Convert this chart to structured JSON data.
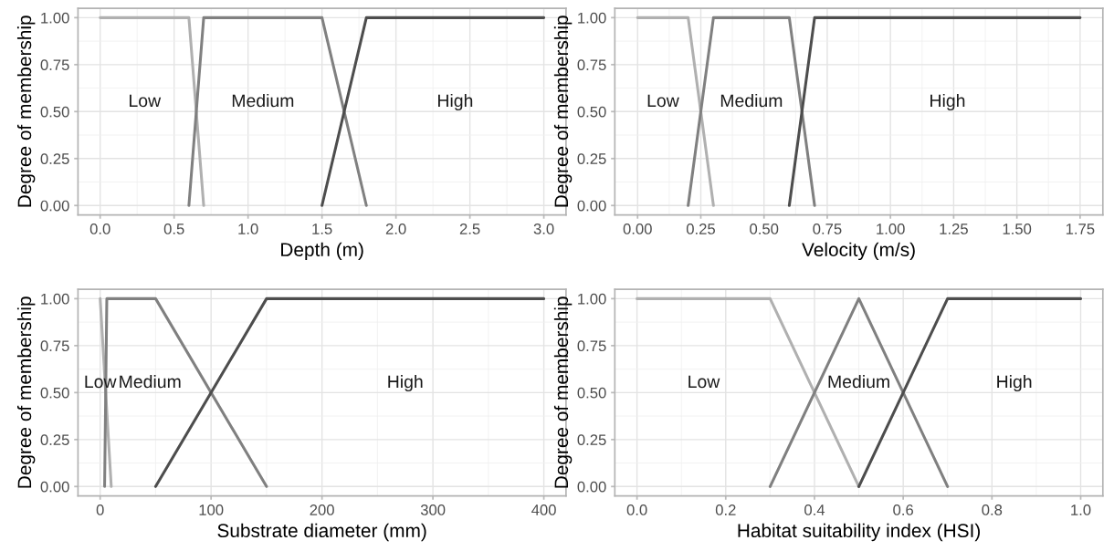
{
  "chart_data": [
    {
      "type": "line",
      "xlabel": "Depth (m)",
      "ylabel": "Degree of membership",
      "grid": true,
      "xlim": [
        -0.15,
        3.15
      ],
      "ylim": [
        -0.05,
        1.05
      ],
      "xticks": [
        {
          "value": 0,
          "label": "0.0"
        },
        {
          "value": 0.5,
          "label": "0.5"
        },
        {
          "value": 1,
          "label": "1.0"
        },
        {
          "value": 1.5,
          "label": "1.5"
        },
        {
          "value": 2,
          "label": "2.0"
        },
        {
          "value": 2.5,
          "label": "2.5"
        },
        {
          "value": 3,
          "label": "3.0"
        }
      ],
      "yticks": [
        {
          "value": 0,
          "label": "0.00"
        },
        {
          "value": 0.25,
          "label": "0.25"
        },
        {
          "value": 0.5,
          "label": "0.50"
        },
        {
          "value": 0.75,
          "label": "0.75"
        },
        {
          "value": 1,
          "label": "1.00"
        }
      ],
      "series": [
        {
          "color": "#b0b0b0",
          "x": [
            0,
            0.6,
            0.7
          ],
          "values": [
            1,
            1,
            0
          ]
        },
        {
          "color": "#808080",
          "x": [
            0.6,
            0.7,
            1.5,
            1.8
          ],
          "values": [
            0,
            1,
            1,
            0
          ]
        },
        {
          "color": "#4d4d4d",
          "x": [
            1.5,
            1.8,
            3
          ],
          "values": [
            0,
            1,
            1
          ]
        }
      ],
      "annotations": [
        "Low",
        "Medium",
        "High"
      ]
    },
    {
      "type": "line",
      "xlabel": "Velocity (m/s)",
      "ylabel": "Degree of membership",
      "grid": true,
      "xlim": [
        -0.09,
        1.84
      ],
      "ylim": [
        -0.05,
        1.05
      ],
      "xticks": [
        {
          "value": 0,
          "label": "0.00"
        },
        {
          "value": 0.25,
          "label": "0.25"
        },
        {
          "value": 0.5,
          "label": "0.50"
        },
        {
          "value": 0.75,
          "label": "0.75"
        },
        {
          "value": 1,
          "label": "1.00"
        },
        {
          "value": 1.25,
          "label": "1.25"
        },
        {
          "value": 1.5,
          "label": "1.50"
        },
        {
          "value": 1.75,
          "label": "1.75"
        }
      ],
      "yticks": [
        {
          "value": 0,
          "label": "0.00"
        },
        {
          "value": 0.25,
          "label": "0.25"
        },
        {
          "value": 0.5,
          "label": "0.50"
        },
        {
          "value": 0.75,
          "label": "0.75"
        },
        {
          "value": 1,
          "label": "1.00"
        }
      ],
      "series": [
        {
          "color": "#b0b0b0",
          "x": [
            0,
            0.2,
            0.3
          ],
          "values": [
            1,
            1,
            0
          ]
        },
        {
          "color": "#808080",
          "x": [
            0.2,
            0.3,
            0.6,
            0.7
          ],
          "values": [
            0,
            1,
            1,
            0
          ]
        },
        {
          "color": "#4d4d4d",
          "x": [
            0.6,
            0.7,
            1.75
          ],
          "values": [
            0,
            1,
            1
          ]
        }
      ],
      "annotations": [
        "Low",
        "Medium",
        "High"
      ]
    },
    {
      "type": "line",
      "xlabel": "Substrate diameter (mm)",
      "ylabel": "Degree of membership",
      "grid": true,
      "xlim": [
        -20,
        420
      ],
      "ylim": [
        -0.05,
        1.05
      ],
      "xticks": [
        0,
        100,
        200,
        300,
        400
      ],
      "yticks": [
        {
          "value": 0,
          "label": "0.00"
        },
        {
          "value": 0.25,
          "label": "0.25"
        },
        {
          "value": 0.5,
          "label": "0.50"
        },
        {
          "value": 0.75,
          "label": "0.75"
        },
        {
          "value": 1,
          "label": "1.00"
        }
      ],
      "series": [
        {
          "color": "#b0b0b0",
          "x": [
            0,
            10
          ],
          "values": [
            1,
            0
          ]
        },
        {
          "color": "#808080",
          "x": [
            4,
            6,
            50,
            150
          ],
          "values": [
            0,
            1,
            1,
            0
          ]
        },
        {
          "color": "#4d4d4d",
          "x": [
            50,
            150,
            400
          ],
          "values": [
            0,
            1,
            1
          ]
        }
      ],
      "annotations": [
        "Low",
        "Medium",
        "High"
      ]
    },
    {
      "type": "line",
      "xlabel": "Habitat suitability index (HSI)",
      "ylabel": "Degree of membership",
      "grid": true,
      "xlim": [
        -0.05,
        1.05
      ],
      "ylim": [
        -0.05,
        1.05
      ],
      "xticks": [
        {
          "value": 0,
          "label": "0.0"
        },
        {
          "value": 0.2,
          "label": "0.2"
        },
        {
          "value": 0.4,
          "label": "0.4"
        },
        {
          "value": 0.6,
          "label": "0.6"
        },
        {
          "value": 0.8,
          "label": "0.8"
        },
        {
          "value": 1,
          "label": "1.0"
        }
      ],
      "yticks": [
        {
          "value": 0,
          "label": "0.00"
        },
        {
          "value": 0.25,
          "label": "0.25"
        },
        {
          "value": 0.5,
          "label": "0.50"
        },
        {
          "value": 0.75,
          "label": "0.75"
        },
        {
          "value": 1,
          "label": "1.00"
        }
      ],
      "series": [
        {
          "color": "#b0b0b0",
          "x": [
            0,
            0.3,
            0.5
          ],
          "values": [
            1,
            1,
            0
          ]
        },
        {
          "color": "#808080",
          "x": [
            0.3,
            0.5,
            0.7
          ],
          "values": [
            0,
            1,
            0
          ]
        },
        {
          "color": "#4d4d4d",
          "x": [
            0.5,
            0.7,
            1
          ],
          "values": [
            0,
            1,
            1
          ]
        }
      ],
      "annotations": [
        "Low",
        "Medium",
        "High"
      ]
    }
  ]
}
